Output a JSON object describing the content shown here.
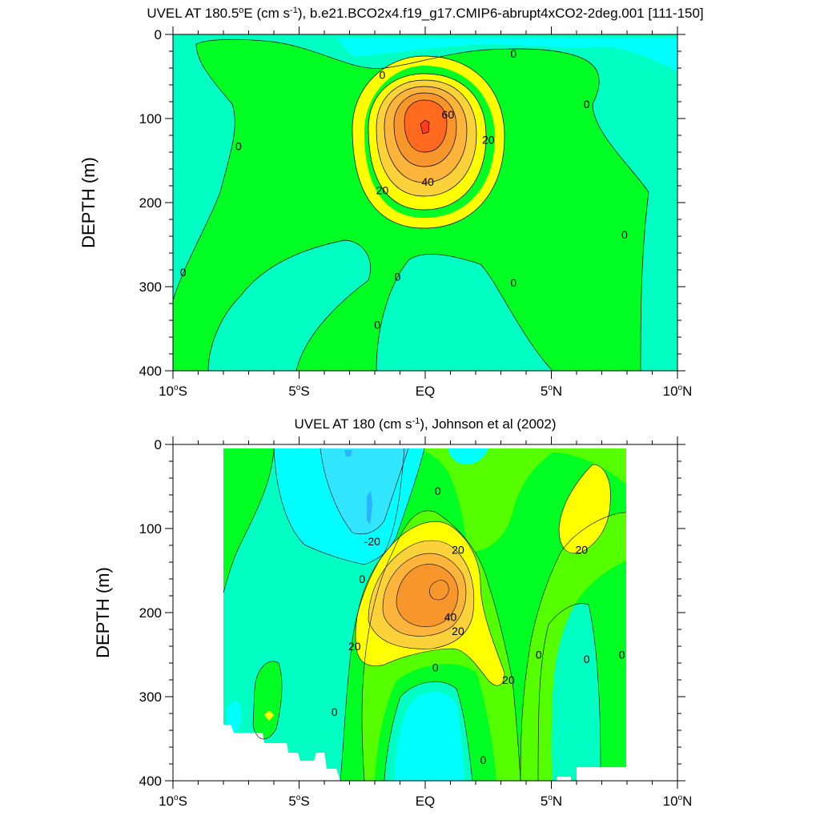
{
  "colors": {
    "plus60": "#ff3c1e",
    "c50": "#ff6a1e",
    "c40": "#f7962a",
    "c30": "#fcb43a",
    "c20": "#fcd23a",
    "c10": "#ffff00",
    "c0": "#00ff23",
    "c_pos_small": "#55ff00",
    "cm10": "#00ffc3",
    "cm20": "#00ffff",
    "cm30": "#32e6ff",
    "cm40": "#28b4ff",
    "missing": "#ffffff",
    "line": "#000000"
  },
  "chart_data": [
    {
      "type": "contour",
      "title": "UVEL AT 180.5°E (cm s-1), b.e21.BCO2x4.f19_g17.CMIP6-abrupt4xCO2-2deg.001 [111-150]",
      "title_parts": {
        "pre": "UVEL AT 180.5",
        "deg": "o",
        "mid": "E (cm s",
        "sup": "-1",
        "post": "), b.e21.BCO2x4.f19_g17.CMIP6-abrupt4xCO2-2deg.001 [111-150]"
      },
      "xlabel": "",
      "ylabel": "DEPTH (m)",
      "xlim": [
        -10,
        10
      ],
      "ylim": [
        0,
        400
      ],
      "y_reversed": true,
      "x_ticks": [
        -10,
        -5,
        0,
        5,
        10
      ],
      "x_tick_labels": [
        {
          "num": "10",
          "deg": "o",
          "hem": "S"
        },
        {
          "num": "5",
          "deg": "o",
          "hem": "S"
        },
        {
          "num": "EQ",
          "deg": "",
          "hem": ""
        },
        {
          "num": "5",
          "deg": "o",
          "hem": "N"
        },
        {
          "num": "10",
          "deg": "o",
          "hem": "N"
        }
      ],
      "y_ticks": [
        0,
        100,
        200,
        300,
        400
      ],
      "y_tick_labels": [
        "0",
        "100",
        "200",
        "300",
        "400"
      ],
      "core": {
        "lat": 0.0,
        "depth": 115,
        "max_value": 70
      },
      "contour_labels": [
        {
          "text": "0",
          "lat": 3.5,
          "depth": 23
        },
        {
          "text": "0",
          "lat": -1.7,
          "depth": 48
        },
        {
          "text": "0",
          "lat": 6.4,
          "depth": 83
        },
        {
          "text": "0",
          "lat": -7.4,
          "depth": 133
        },
        {
          "text": "0",
          "lat": 7.9,
          "depth": 238
        },
        {
          "text": "0",
          "lat": -9.6,
          "depth": 283
        },
        {
          "text": "0",
          "lat": -1.1,
          "depth": 288
        },
        {
          "text": "0",
          "lat": 3.5,
          "depth": 295
        },
        {
          "text": "0",
          "lat": -1.9,
          "depth": 345
        },
        {
          "text": "60",
          "lat": 0.9,
          "depth": 95
        },
        {
          "text": "20",
          "lat": 2.5,
          "depth": 125
        },
        {
          "text": "40",
          "lat": 0.1,
          "depth": 175
        },
        {
          "text": "20",
          "lat": -1.7,
          "depth": 185
        }
      ]
    },
    {
      "type": "contour",
      "title": "UVEL AT 180 (cm s-1), Johnson et al (2002)",
      "title_parts": {
        "pre": "UVEL AT 180",
        "deg": "",
        "mid": " (cm s",
        "sup": "-1",
        "post": "), Johnson et al (2002)"
      },
      "xlabel": "",
      "ylabel": "DEPTH (m)",
      "xlim": [
        -10,
        10
      ],
      "ylim": [
        0,
        400
      ],
      "y_reversed": true,
      "x_ticks": [
        -10,
        -5,
        0,
        5,
        10
      ],
      "x_tick_labels": [
        {
          "num": "10",
          "deg": "o",
          "hem": "S"
        },
        {
          "num": "5",
          "deg": "o",
          "hem": "S"
        },
        {
          "num": "EQ",
          "deg": "",
          "hem": ""
        },
        {
          "num": "5",
          "deg": "o",
          "hem": "N"
        },
        {
          "num": "10",
          "deg": "o",
          "hem": "N"
        }
      ],
      "y_ticks": [
        0,
        100,
        200,
        300,
        400
      ],
      "y_tick_labels": [
        "0",
        "100",
        "200",
        "300",
        "400"
      ],
      "data_extent": {
        "lat": [
          -8,
          8
        ],
        "depth": [
          0,
          400
        ]
      },
      "core": {
        "lat": 0.5,
        "depth": 170,
        "max_value": 60
      },
      "contour_labels": [
        {
          "text": "0",
          "lat": 0.5,
          "depth": 55
        },
        {
          "text": "-20",
          "lat": -2.1,
          "depth": 115
        },
        {
          "text": "20",
          "lat": 1.3,
          "depth": 125
        },
        {
          "text": "20",
          "lat": 6.2,
          "depth": 125
        },
        {
          "text": "0",
          "lat": -2.5,
          "depth": 160
        },
        {
          "text": "40",
          "lat": 1.0,
          "depth": 205
        },
        {
          "text": "20",
          "lat": 1.3,
          "depth": 222
        },
        {
          "text": "20",
          "lat": -2.8,
          "depth": 240
        },
        {
          "text": "0",
          "lat": 4.5,
          "depth": 250
        },
        {
          "text": "0",
          "lat": 6.4,
          "depth": 255
        },
        {
          "text": "0",
          "lat": 7.8,
          "depth": 250
        },
        {
          "text": "0",
          "lat": 0.4,
          "depth": 265
        },
        {
          "text": "20",
          "lat": 3.3,
          "depth": 280
        },
        {
          "text": "0",
          "lat": -3.6,
          "depth": 318
        },
        {
          "text": "0",
          "lat": 2.3,
          "depth": 375
        }
      ]
    }
  ]
}
